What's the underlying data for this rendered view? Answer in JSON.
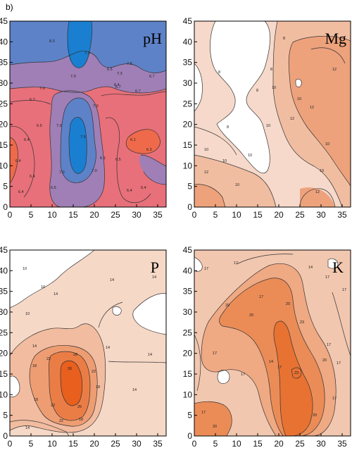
{
  "figure_label": "b)",
  "chart_data": [
    {
      "type": "contour",
      "parameter": "pH",
      "xlim": [
        0,
        37
      ],
      "ylim": [
        0,
        45
      ],
      "xticks": [
        "0",
        "5",
        "10",
        "15",
        "20",
        "25",
        "30",
        "35"
      ],
      "yticks": [
        "0",
        "5",
        "10",
        "15",
        "20",
        "25",
        "30",
        "35",
        "40",
        "45"
      ],
      "colors": {
        "base": "#e8707a",
        "mid": "#9f7fb6",
        "high": "#5e82c8",
        "highest": "#1a7fd1",
        "low": "#ee6a4a"
      },
      "contour_levels": [
        "6.1",
        "6.3",
        "6.4",
        "6.5",
        "6.7",
        "7.0",
        "7.3",
        "7.5",
        "7.8",
        "8.3"
      ]
    },
    {
      "type": "contour",
      "parameter": "Mg",
      "xlim": [
        0,
        37
      ],
      "ylim": [
        0,
        45
      ],
      "xticks": [
        "0",
        "5",
        "10",
        "15",
        "20",
        "25",
        "30",
        "35"
      ],
      "yticks": [
        "0",
        "5",
        "10",
        "15",
        "20",
        "25",
        "30",
        "35",
        "40",
        "45"
      ],
      "colors": {
        "l1": "#ffffff",
        "l2": "#f6d9ca",
        "l3": "#f1bda1",
        "l4": "#eda27c",
        "l5": "#e9895a"
      },
      "contour_levels": [
        "6",
        "8",
        "10",
        "12"
      ]
    },
    {
      "type": "contour",
      "parameter": "P",
      "xlim": [
        0,
        37
      ],
      "ylim": [
        0,
        45
      ],
      "xticks": [
        "0",
        "5",
        "10",
        "15",
        "20",
        "25",
        "30",
        "35"
      ],
      "yticks": [
        "0",
        "5",
        "10",
        "15",
        "20",
        "25",
        "30",
        "35",
        "40",
        "45"
      ],
      "colors": {
        "l1": "#ffffff",
        "l2": "#f6d8c7",
        "l3": "#f2bca0",
        "l4": "#ee9d72",
        "l5": "#ea7d45",
        "l6": "#e85f1e"
      },
      "contour_levels": [
        "10",
        "14",
        "18",
        "22",
        "26",
        "30"
      ]
    },
    {
      "type": "contour",
      "parameter": "K",
      "xlim": [
        0,
        37
      ],
      "ylim": [
        0,
        45
      ],
      "xticks": [
        "0",
        "5",
        "10",
        "15",
        "20",
        "25",
        "30",
        "35"
      ],
      "yticks": [
        "0",
        "5",
        "10",
        "15",
        "20",
        "25",
        "30",
        "35",
        "40",
        "45"
      ],
      "colors": {
        "l1": "#ffffff",
        "l2": "#f2c7af",
        "l3": "#efa983",
        "l4": "#eb8c57",
        "l5": "#e87232"
      },
      "contour_levels": [
        "14",
        "17",
        "20",
        "23"
      ]
    }
  ]
}
